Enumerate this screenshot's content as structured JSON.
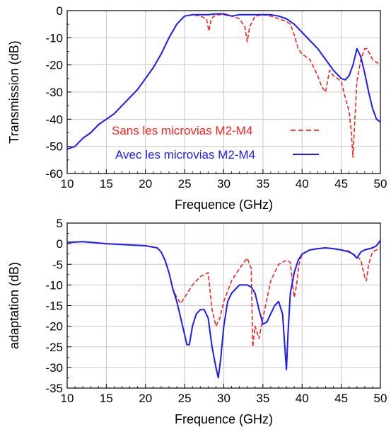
{
  "chart_data": [
    {
      "type": "line",
      "xlabel": "Frequence (GHz)",
      "ylabel": "Transmission (dB)",
      "xlim": [
        10,
        50
      ],
      "ylim": [
        -60,
        0
      ],
      "xticks": [
        "10",
        "15",
        "20",
        "25",
        "30",
        "35",
        "40",
        "45",
        "50"
      ],
      "yticks": [
        "0",
        "-10",
        "-20",
        "-30",
        "-40",
        "-50",
        "-60"
      ],
      "grid": true,
      "legend": "middle-left",
      "series": [
        {
          "name": "Sans les microvias M2-M4",
          "color": "#ff2020",
          "dash": true,
          "x": [
            10,
            11,
            12,
            13,
            14,
            15,
            16,
            17,
            18,
            19,
            20,
            21,
            22,
            23,
            24,
            25,
            26,
            27,
            27.8,
            28.1,
            28.4,
            29,
            30,
            31,
            32,
            32.7,
            33,
            33.3,
            34,
            35,
            36,
            37,
            38,
            38.5,
            39,
            39.5,
            40,
            41,
            42,
            42.5,
            43,
            43.5,
            44,
            45,
            45.5,
            46,
            46.3,
            46.5,
            46.7,
            47,
            47.5,
            48,
            48.3,
            49,
            50
          ],
          "y": [
            -51,
            -50,
            -47,
            -45,
            -42,
            -40,
            -38,
            -35,
            -32,
            -29,
            -25,
            -21,
            -16,
            -10,
            -5,
            -2,
            -1.5,
            -2,
            -3,
            -7.5,
            -3,
            -1.5,
            -1.5,
            -2,
            -3,
            -6,
            -11.5,
            -6,
            -2,
            -1.5,
            -2,
            -3,
            -4,
            -5,
            -9,
            -14,
            -16,
            -18,
            -24,
            -28,
            -30,
            -22,
            -24,
            -26,
            -32,
            -37,
            -45,
            -54,
            -42,
            -26,
            -18,
            -14,
            -14,
            -18,
            -20
          ]
        },
        {
          "name": "Avec les microvias M2-M4",
          "color": "#1a1aff",
          "dash": false,
          "x": [
            10,
            11,
            12,
            13,
            14,
            15,
            16,
            17,
            18,
            19,
            20,
            21,
            22,
            23,
            24,
            25,
            26,
            27,
            28,
            29,
            30,
            31,
            32,
            33,
            34,
            35,
            36,
            37,
            38,
            38.5,
            39,
            40,
            41,
            42,
            43,
            44,
            45,
            45.5,
            46,
            46.5,
            47,
            47.5,
            48,
            48.5,
            49,
            49.5,
            50
          ],
          "y": [
            -51,
            -50,
            -47,
            -45,
            -42,
            -40,
            -38,
            -35,
            -32,
            -29,
            -25,
            -21,
            -16,
            -10,
            -5,
            -2,
            -1.5,
            -1.5,
            -1.5,
            -1.2,
            -1.2,
            -2,
            -1.5,
            -1.5,
            -1.5,
            -1.5,
            -1.5,
            -2,
            -3,
            -4,
            -5,
            -8,
            -11,
            -14,
            -18,
            -22,
            -25,
            -25.5,
            -24,
            -20,
            -14,
            -17,
            -23,
            -30,
            -36,
            -40,
            -41
          ]
        }
      ]
    },
    {
      "type": "line",
      "xlabel": "Frequence (GHz)",
      "ylabel": "adaptation (dB)",
      "xlim": [
        10,
        50
      ],
      "ylim": [
        -35,
        5
      ],
      "xticks": [
        "10",
        "15",
        "20",
        "25",
        "30",
        "35",
        "40",
        "45",
        "50"
      ],
      "yticks": [
        "5",
        "0",
        "-5",
        "-10",
        "-15",
        "-20",
        "-25",
        "-30",
        "-35"
      ],
      "grid": true,
      "series": [
        {
          "name": "Sans les microvias M2-M4",
          "color": "#ff2020",
          "dash": true,
          "x": [
            10,
            12,
            15,
            18,
            20,
            21.5,
            22,
            22.5,
            23,
            23.5,
            24,
            24.5,
            25,
            26,
            27,
            28,
            28.5,
            29,
            29.5,
            30,
            31,
            32,
            33,
            33.5,
            33.7,
            34,
            34.5,
            35,
            36,
            37,
            38,
            38.5,
            38.8,
            39,
            39.3,
            39.6,
            40,
            41,
            42,
            43,
            44,
            45,
            46,
            46.5,
            47,
            47.5,
            48,
            48.2,
            48.5,
            49,
            50
          ],
          "y": [
            0.3,
            0.5,
            0,
            -0.3,
            -0.5,
            -1,
            -2,
            -4,
            -7,
            -11,
            -13,
            -14.5,
            -13,
            -10,
            -8,
            -7,
            -16,
            -20,
            -18,
            -14,
            -9,
            -6,
            -3.5,
            -6,
            -25,
            -20,
            -23,
            -18,
            -9,
            -5,
            -4,
            -4.5,
            -10,
            -13,
            -10,
            -5,
            -2.5,
            -1.5,
            -1.2,
            -1,
            -1.2,
            -1.5,
            -1.8,
            -2.5,
            -3,
            -4,
            -8,
            -9,
            -5,
            -2,
            -1
          ]
        },
        {
          "name": "Avec les microvias M2-M4",
          "color": "#1a1aff",
          "dash": false,
          "x": [
            10,
            12,
            15,
            18,
            20,
            21.5,
            22,
            22.5,
            23,
            23.5,
            24,
            24.5,
            25,
            25.3,
            25.6,
            26,
            26.5,
            27,
            27.5,
            28,
            28.5,
            29,
            29.3,
            29.6,
            30,
            30.5,
            31,
            32,
            33,
            33.5,
            34,
            34.5,
            35,
            35.5,
            36,
            36.5,
            37,
            37.5,
            38,
            38.2,
            38.5,
            39,
            39.5,
            40,
            41,
            42,
            43,
            44,
            45,
            46,
            46.5,
            47,
            47.5,
            48,
            49,
            49.5,
            50
          ],
          "y": [
            0.3,
            0.5,
            0,
            -0.3,
            -0.5,
            -1,
            -2,
            -4,
            -7,
            -11,
            -14,
            -18,
            -22,
            -24.5,
            -24.5,
            -20,
            -17,
            -16,
            -16,
            -18,
            -25,
            -30,
            -32.5,
            -28,
            -20,
            -14,
            -12,
            -10,
            -10,
            -10.5,
            -12,
            -16,
            -19.5,
            -19,
            -17,
            -15,
            -14,
            -17,
            -30.5,
            -22,
            -12,
            -7,
            -4,
            -2.5,
            -1.5,
            -1.2,
            -1,
            -1.2,
            -1.5,
            -2,
            -2.5,
            -3.5,
            -2,
            -1.5,
            -1,
            -0.5,
            0.8
          ]
        }
      ]
    }
  ]
}
